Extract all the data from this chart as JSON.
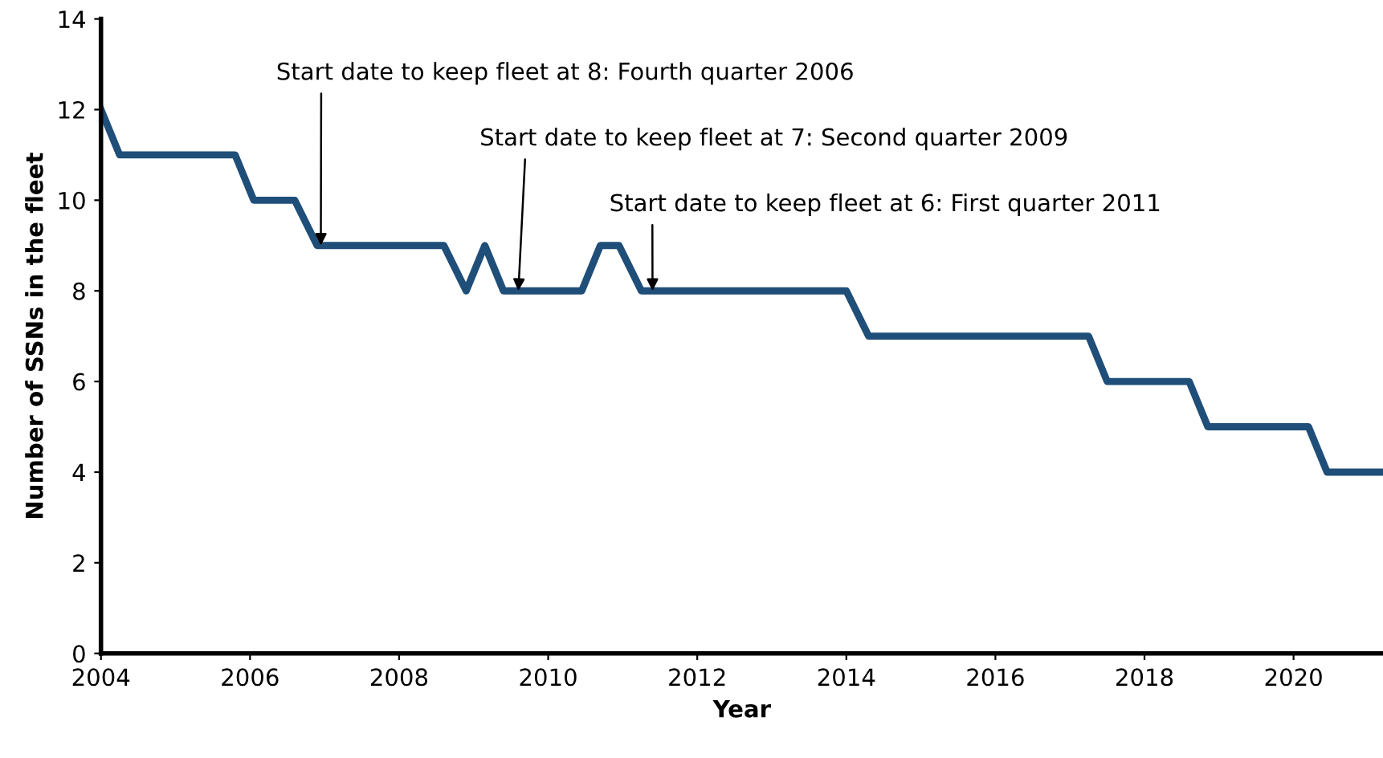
{
  "chart_data": {
    "type": "line",
    "xlabel": "Year",
    "ylabel": "Number of SSNs in the fleet",
    "x": [
      2004.0,
      2004.25,
      2005.8,
      2006.05,
      2006.6,
      2006.9,
      2008.6,
      2008.9,
      2009.15,
      2009.4,
      2010.45,
      2010.7,
      2010.95,
      2011.25,
      2014.0,
      2014.3,
      2017.25,
      2017.5,
      2018.6,
      2018.85,
      2020.2,
      2020.45,
      2021.2
    ],
    "series": [
      {
        "color": "#1f4e79",
        "values": [
          12,
          11,
          11,
          10,
          10,
          9,
          9,
          8,
          9,
          8,
          8,
          9,
          9,
          8,
          8,
          7,
          7,
          6,
          6,
          5,
          5,
          4,
          4
        ]
      }
    ],
    "xlim": [
      2004,
      2021.2
    ],
    "xticks": [
      2004,
      2006,
      2008,
      2010,
      2012,
      2014,
      2016,
      2018,
      2020
    ],
    "ylim": [
      0,
      14
    ],
    "yticks": [
      0,
      2,
      4,
      6,
      8,
      10,
      12,
      14
    ],
    "grid": false,
    "marker": "none",
    "line_style": "solid",
    "legend": false,
    "annotations": [
      {
        "text": "Start date to keep fleet at 8: Fourth quarter 2006",
        "x": 2006.95,
        "y": 9
      },
      {
        "text": "Start date to keep fleet at 7: Second quarter 2009",
        "x": 2009.6,
        "y": 8
      },
      {
        "text": "Start date to keep fleet at 6: First quarter 2011",
        "x": 2011.4,
        "y": 8
      }
    ]
  }
}
